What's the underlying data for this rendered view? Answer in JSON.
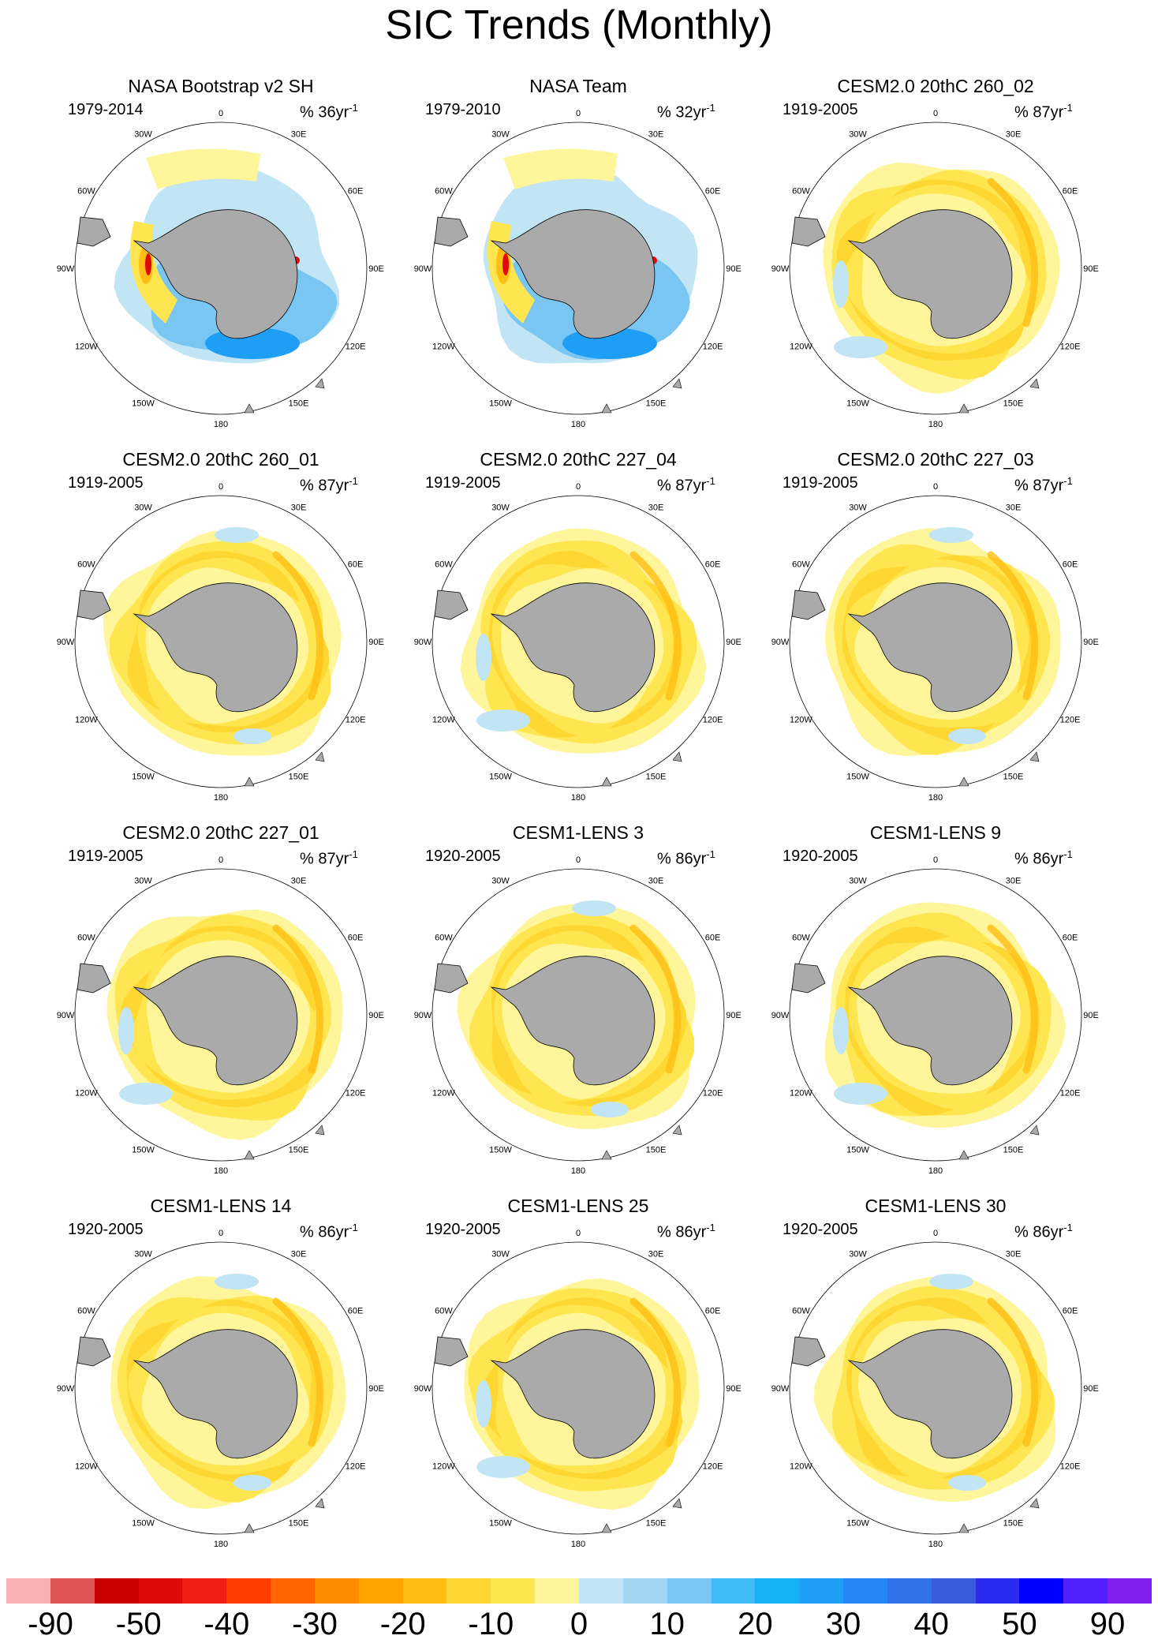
{
  "title": "SIC Trends (Monthly)",
  "percent_symbol": "%",
  "unit_base": "yr",
  "unit_exp": "-1",
  "lon_labels": [
    "0",
    "30E",
    "60E",
    "90E",
    "120E",
    "150E",
    "180",
    "150W",
    "120W",
    "90W",
    "60W",
    "30W"
  ],
  "panels": [
    {
      "title": "NASA Bootstrap v2 SH",
      "period": "1979-2014",
      "pct": "36",
      "pattern": "obs"
    },
    {
      "title": "NASA Team",
      "period": "1979-2010",
      "pct": "32",
      "pattern": "obs2"
    },
    {
      "title": "CESM2.0 20thC 260_02",
      "period": "1919-2005",
      "pct": "87",
      "pattern": "model"
    },
    {
      "title": "CESM2.0 20thC 260_01",
      "period": "1919-2005",
      "pct": "87",
      "pattern": "model"
    },
    {
      "title": "CESM2.0 20thC 227_04",
      "period": "1919-2005",
      "pct": "87",
      "pattern": "model"
    },
    {
      "title": "CESM2.0 20thC 227_03",
      "period": "1919-2005",
      "pct": "87",
      "pattern": "model"
    },
    {
      "title": "CESM2.0 20thC 227_01",
      "period": "1919-2005",
      "pct": "87",
      "pattern": "model"
    },
    {
      "title": "CESM1-LENS 3",
      "period": "1920-2005",
      "pct": "86",
      "pattern": "model"
    },
    {
      "title": "CESM1-LENS 9",
      "period": "1920-2005",
      "pct": "86",
      "pattern": "model"
    },
    {
      "title": "CESM1-LENS 14",
      "period": "1920-2005",
      "pct": "86",
      "pattern": "model"
    },
    {
      "title": "CESM1-LENS 25",
      "period": "1920-2005",
      "pct": "86",
      "pattern": "model"
    },
    {
      "title": "CESM1-LENS 30",
      "period": "1920-2005",
      "pct": "86",
      "pattern": "model"
    }
  ],
  "colorbar": {
    "colors": [
      "#f8b2b4",
      "#e05454",
      "#c80000",
      "#dc0a0a",
      "#f01e14",
      "#ff3c00",
      "#ff6400",
      "#ff8c00",
      "#ffa500",
      "#ffbe14",
      "#ffd732",
      "#ffe650",
      "#fff59b",
      "#c1e5f5",
      "#a1d5f3",
      "#7ac6f3",
      "#3fbaf5",
      "#13b2f3",
      "#1f9ef5",
      "#2487f6",
      "#3073e8",
      "#3a5cdc",
      "#2a2af0",
      "#0000ff",
      "#5020ff",
      "#8020f0"
    ],
    "labels": [
      "-90",
      "-50",
      "-40",
      "-30",
      "-20",
      "-10",
      "0",
      "10",
      "20",
      "30",
      "40",
      "50",
      "90"
    ]
  },
  "colors": {
    "land": "#aaaaaa",
    "ocean": "#ffffff",
    "pale_yellow": "#fff59b",
    "yellow": "#ffe650",
    "gold": "#ffd732",
    "orange": "#ffbe14",
    "red": "#dc0a0a",
    "light_blue": "#c1e5f5",
    "blue": "#7ac6f3",
    "deep_blue": "#1f9ef5"
  }
}
